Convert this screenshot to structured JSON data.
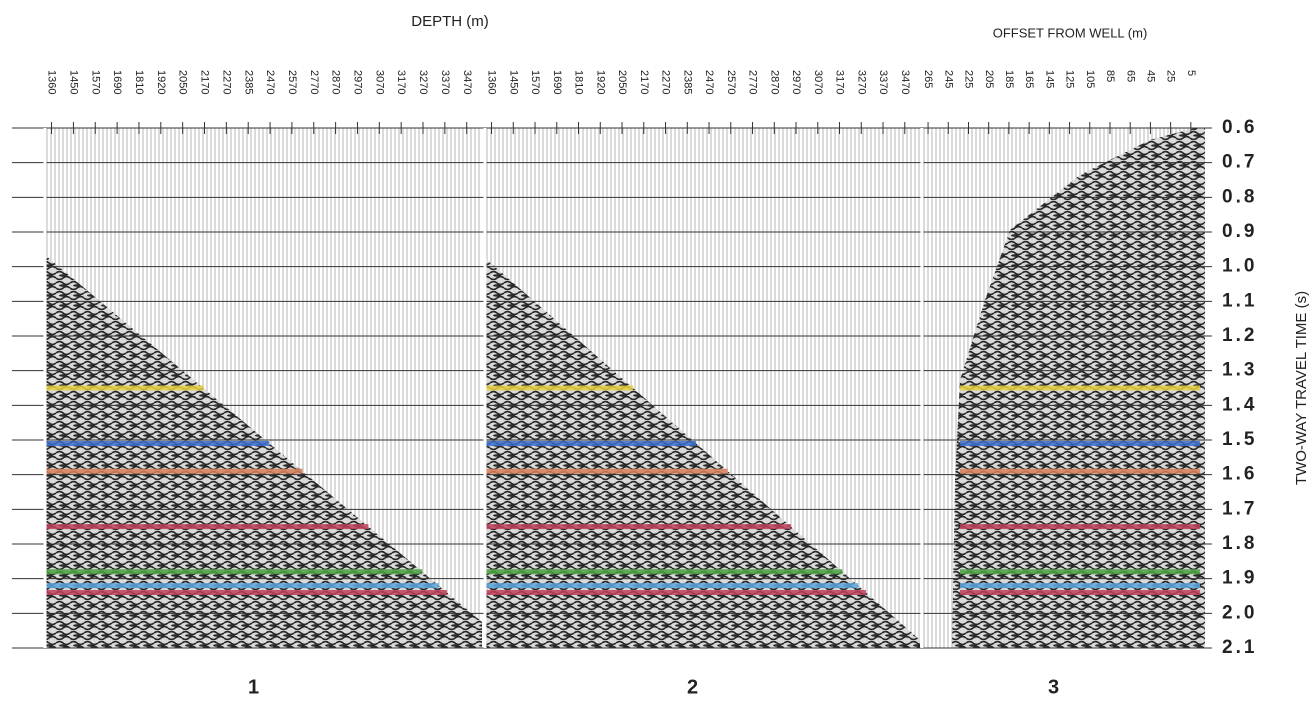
{
  "depth_label": "DEPTH (m)",
  "offset_label": "OFFSET FROM WELL (m)",
  "time_axis": {
    "label": "TWO-WAY TRAVEL TIME (s)",
    "ticks": [
      "0.6",
      "0.7",
      "0.8",
      "0.9",
      "1.0",
      "1.1",
      "1.2",
      "1.3",
      "1.4",
      "1.5",
      "1.6",
      "1.7",
      "1.8",
      "1.9",
      "2.0",
      "2.1"
    ]
  },
  "panels": [
    {
      "label": "1",
      "ticks": [
        "1360",
        "1450",
        "1570",
        "1690",
        "1810",
        "1920",
        "2050",
        "2170",
        "2270",
        "2385",
        "2470",
        "2570",
        "2770",
        "2870",
        "2970",
        "3070",
        "3170",
        "3270",
        "3370",
        "3470"
      ]
    },
    {
      "label": "2",
      "ticks": [
        "1360",
        "1450",
        "1570",
        "1690",
        "1810",
        "1920",
        "2050",
        "2170",
        "2270",
        "2385",
        "2470",
        "2570",
        "2770",
        "2870",
        "2970",
        "3070",
        "3170",
        "3270",
        "3370",
        "3470"
      ]
    },
    {
      "label": "3",
      "ticks": [
        "265",
        "245",
        "225",
        "205",
        "185",
        "165",
        "145",
        "125",
        "105",
        "85",
        "65",
        "45",
        "25",
        "5"
      ]
    }
  ]
}
